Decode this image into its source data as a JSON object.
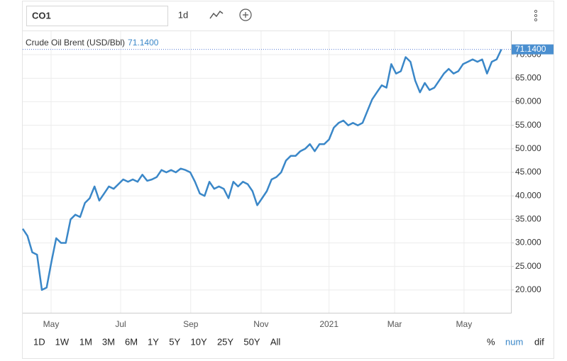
{
  "toolbar": {
    "symbol": "CO1",
    "interval": "1d",
    "ranges": [
      "1D",
      "1W",
      "1M",
      "3M",
      "6M",
      "1Y",
      "5Y",
      "10Y",
      "25Y",
      "50Y",
      "All"
    ],
    "modes": [
      "%",
      "num",
      "dif"
    ]
  },
  "chart_data": {
    "type": "line",
    "series": [
      {
        "name": "Crude Oil Brent (USD/Bbl)",
        "color": "#3a87c8",
        "last_value_label": "71.1400",
        "values": [
          33.0,
          31.5,
          28.0,
          27.5,
          20.0,
          20.5,
          26,
          31,
          30,
          30,
          35,
          36,
          35.5,
          38.5,
          39.5,
          42,
          39,
          40.5,
          42,
          41.5,
          42.5,
          43.5,
          43,
          43.5,
          43,
          44.5,
          43.2,
          43.5,
          44,
          45.5,
          45,
          45.5,
          45,
          45.8,
          45.5,
          45,
          43,
          40.5,
          40,
          43,
          41.5,
          42,
          41.5,
          39.5,
          43,
          42,
          43,
          42.5,
          41,
          38,
          39.5,
          41,
          43.5,
          44,
          45,
          47.5,
          48.5,
          48.5,
          49.5,
          50,
          51,
          49.5,
          51,
          51,
          52,
          54.5,
          55.5,
          56,
          55,
          55.5,
          55,
          55.5,
          58,
          60.5,
          62,
          63.5,
          63,
          68,
          66,
          66.5,
          69.5,
          68.5,
          64.5,
          62,
          64,
          62.5,
          63,
          64.5,
          66,
          67,
          66,
          66.5,
          68,
          68.5,
          69,
          68.5,
          69,
          66,
          68.5,
          69,
          71.14
        ]
      }
    ],
    "xlim": [
      0,
      102
    ],
    "xticks": [
      {
        "value": 5.93,
        "label": "May"
      },
      {
        "value": 20.46,
        "label": "Jul"
      },
      {
        "value": 35.1,
        "label": "Sep"
      },
      {
        "value": 49.8,
        "label": "Nov"
      },
      {
        "value": 64.0,
        "label": "2021"
      },
      {
        "value": 77.7,
        "label": "Mar"
      },
      {
        "value": 92.2,
        "label": "May"
      }
    ],
    "ylim": [
      15,
      75
    ],
    "yticks": [
      {
        "value": 20,
        "label": "20.000"
      },
      {
        "value": 25,
        "label": "25.000"
      },
      {
        "value": 30,
        "label": "30.000"
      },
      {
        "value": 35,
        "label": "35.000"
      },
      {
        "value": 40,
        "label": "40.000"
      },
      {
        "value": 45,
        "label": "45.000"
      },
      {
        "value": 50,
        "label": "50.000"
      },
      {
        "value": 55,
        "label": "55.000"
      },
      {
        "value": 60,
        "label": "60.000"
      },
      {
        "value": 65,
        "label": "65.000"
      },
      {
        "value": 70,
        "label": "70.000"
      }
    ],
    "grid": true
  }
}
